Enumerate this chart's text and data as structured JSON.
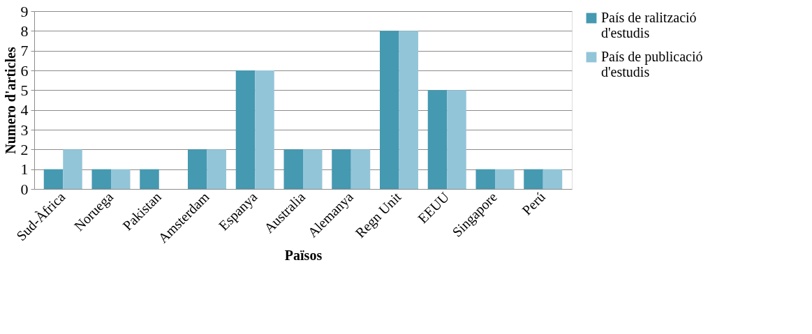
{
  "chart_data": {
    "type": "bar",
    "xlabel": "Països",
    "ylabel": "Numero d'articles",
    "categories": [
      "Sud-Àfrica",
      "Noruega",
      "Pakistan",
      "Amsterdam",
      "Espanya",
      "Australia",
      "Alemanya",
      "Regn Unit",
      "EEUU",
      "Singapore",
      "Perú"
    ],
    "series": [
      {
        "name": "País de ralització d'estudis",
        "color": "#4599b1",
        "values": [
          1,
          1,
          1,
          2,
          6,
          2,
          2,
          8,
          5,
          1,
          1
        ]
      },
      {
        "name": "País de publicació d'estudis",
        "color": "#93c5d8",
        "values": [
          2,
          1,
          0,
          2,
          6,
          2,
          2,
          8,
          5,
          1,
          1
        ]
      }
    ],
    "ylim": [
      0,
      9
    ],
    "yticks": [
      0,
      1,
      2,
      3,
      4,
      5,
      6,
      7,
      8,
      9
    ],
    "grid": "y",
    "legend": "right"
  }
}
